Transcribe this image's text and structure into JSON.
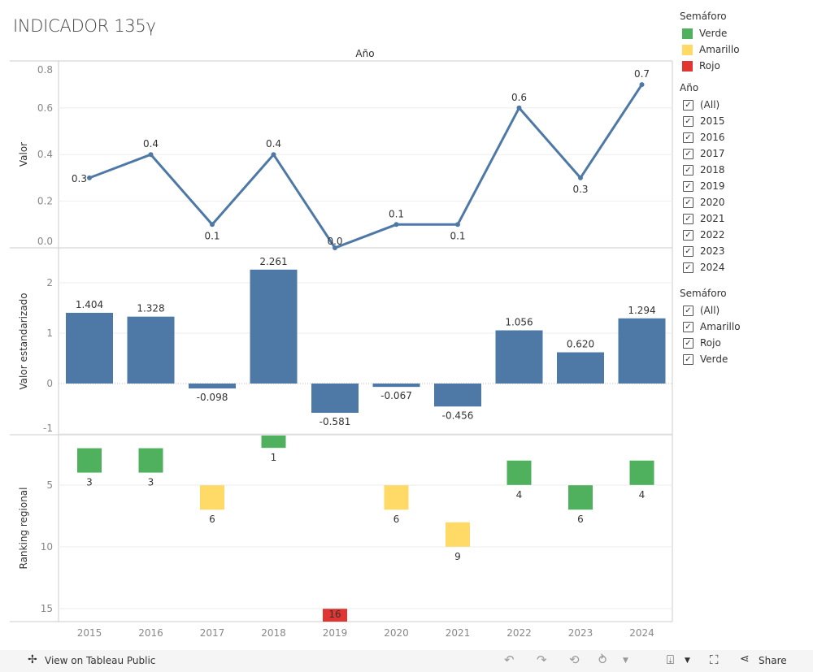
{
  "title": "INDICADOR 135γ",
  "colors": {
    "line": "#4e79a7",
    "bar": "#4e79a7",
    "Verde": "#4fb15e",
    "Amarillo": "#ffda66",
    "Rojo": "#e03531"
  },
  "chart_data": [
    {
      "type": "line",
      "title": "",
      "column_header": "Año",
      "ylabel": "Valor",
      "ylim": [
        0,
        0.8
      ],
      "yticks": [
        "0.0",
        "0.2",
        "0.4",
        "0.6",
        "0.8"
      ],
      "x": [
        "2015",
        "2016",
        "2017",
        "2018",
        "2019",
        "2020",
        "2021",
        "2022",
        "2023",
        "2024"
      ],
      "values": [
        0.3,
        0.4,
        0.1,
        0.4,
        0.0,
        0.1,
        0.1,
        0.6,
        0.3,
        0.7
      ],
      "labels": [
        "0.3",
        "0.4",
        "0.1",
        "0.4",
        "0.0",
        "0.1",
        "0.1",
        "0.6",
        "0.3",
        "0.7"
      ]
    },
    {
      "type": "bar",
      "ylabel": "Valor estandarizado",
      "ylim": [
        -1,
        2.5
      ],
      "yticks": [
        "-1",
        "0",
        "1",
        "2"
      ],
      "x": [
        "2015",
        "2016",
        "2017",
        "2018",
        "2019",
        "2020",
        "2021",
        "2022",
        "2023",
        "2024"
      ],
      "values": [
        1.404,
        1.328,
        -0.098,
        2.261,
        -0.581,
        -0.067,
        -0.456,
        1.056,
        0.62,
        1.294
      ],
      "labels": [
        "1.404",
        "1.328",
        "-0.098",
        "2.261",
        "-0.581",
        "-0.067",
        "-0.456",
        "1.056",
        "0.620",
        "1.294"
      ]
    },
    {
      "type": "bar",
      "ylabel": "Ranking regional",
      "reversed_axis": true,
      "ylim": [
        1,
        16
      ],
      "yticks": [
        "5",
        "10",
        "15"
      ],
      "x": [
        "2015",
        "2016",
        "2017",
        "2018",
        "2019",
        "2020",
        "2021",
        "2022",
        "2023",
        "2024"
      ],
      "values": [
        3,
        3,
        6,
        1,
        16,
        6,
        9,
        4,
        6,
        4
      ],
      "semaforo": [
        "Verde",
        "Verde",
        "Amarillo",
        "Verde",
        "Rojo",
        "Amarillo",
        "Amarillo",
        "Verde",
        "Verde",
        "Verde"
      ],
      "labels": [
        "3",
        "3",
        "6",
        "1",
        "16",
        "6",
        "9",
        "4",
        "6",
        "4"
      ]
    }
  ],
  "legend": {
    "title": "Semáforo",
    "items": [
      "Verde",
      "Amarillo",
      "Rojo"
    ]
  },
  "filter_year": {
    "title": "Año",
    "items": [
      "(All)",
      "2015",
      "2016",
      "2017",
      "2018",
      "2019",
      "2020",
      "2021",
      "2022",
      "2023",
      "2024"
    ]
  },
  "filter_sem": {
    "title": "Semáforo",
    "items": [
      "(All)",
      "Amarillo",
      "Rojo",
      "Verde"
    ]
  },
  "bottom": {
    "view_label": "View on Tableau Public",
    "share_label": "Share"
  }
}
